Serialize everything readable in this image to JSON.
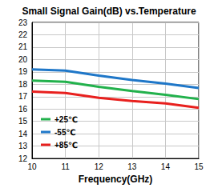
{
  "chart_data": {
    "type": "line",
    "title": "Small Signal Gain(dB) vs.Temperature",
    "x_label": "Frequency(GHz)",
    "x": [
      10,
      11,
      12,
      13,
      14,
      15
    ],
    "series": [
      {
        "name": "+25℃",
        "color": "#22b14c",
        "values": [
          18.3,
          18.2,
          17.8,
          17.45,
          17.15,
          16.8
        ]
      },
      {
        "name": "-55℃",
        "color": "#1f77c8",
        "values": [
          19.2,
          19.1,
          18.7,
          18.35,
          18.05,
          17.7
        ]
      },
      {
        "name": "+85℃",
        "color": "#e8201e",
        "values": [
          17.4,
          17.3,
          16.9,
          16.65,
          16.45,
          16.1
        ]
      }
    ],
    "xlim": [
      10,
      15
    ],
    "xticks": [
      10,
      11,
      12,
      13,
      14,
      15
    ],
    "ylim": [
      12,
      23
    ],
    "yticks": [
      12,
      13,
      14,
      15,
      16,
      17,
      18,
      19,
      20,
      21,
      22,
      23
    ],
    "grid": true,
    "legend": "lower left"
  }
}
